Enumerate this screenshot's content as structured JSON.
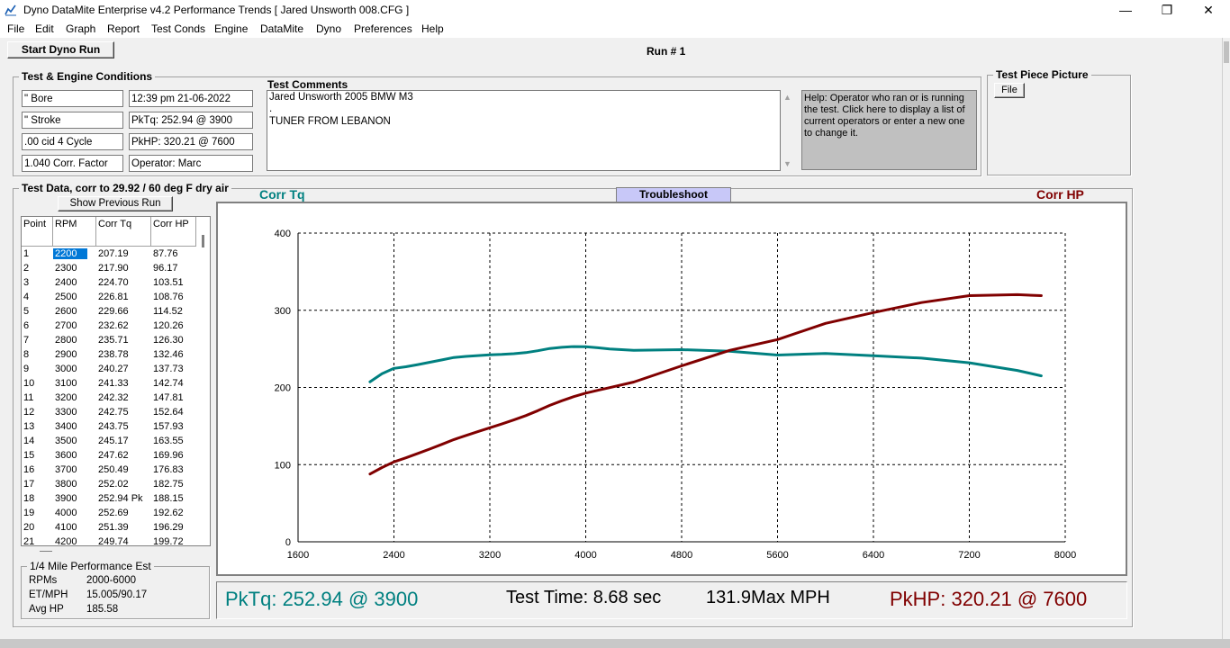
{
  "window": {
    "title": "Dyno DataMite Enterprise v4.2   Performance Trends   [ Jared Unsworth  008.CFG ]",
    "minimize": "—",
    "maximize": "❐",
    "close": "✕"
  },
  "menu": [
    "File",
    "Edit",
    "Graph",
    "Report",
    "Test Conds",
    "Engine",
    "DataMite",
    "Dyno",
    "Preferences",
    "Help"
  ],
  "toolbar": {
    "start_label": "Start Dyno Run",
    "run_label": "Run # 1"
  },
  "conditions": {
    "legend": "Test & Engine Conditions",
    "left": [
      "\" Bore",
      "\" Stroke",
      ".00 cid  4 Cycle",
      "1.040 Corr. Factor"
    ],
    "right": [
      "12:39 pm  21-06-2022",
      "PkTq: 252.94 @  3900",
      "PkHP: 320.21 @  7600",
      "Operator: Marc"
    ]
  },
  "comments": {
    "label": "Test Comments",
    "lines": [
      "Jared Unsworth  2005 BMW M3",
      ".",
      " TUNER FROM LEBANON"
    ]
  },
  "help_text": "Help:  Operator who ran or is running the test.  Click here to display a list of current operators or enter a new one to change it.",
  "picture": {
    "legend": "Test Piece Picture",
    "file_button": "File"
  },
  "data": {
    "legend": "Test Data, corr to 29.92 / 60 deg F dry air",
    "show_prev": "Show Previous Run",
    "headers": [
      "Point",
      "RPM",
      "Corr Tq",
      "Corr HP"
    ],
    "rows": [
      [
        "1",
        "2200",
        "207.19",
        "87.76"
      ],
      [
        "2",
        "2300",
        "217.90",
        "96.17"
      ],
      [
        "3",
        "2400",
        "224.70",
        "103.51"
      ],
      [
        "4",
        "2500",
        "226.81",
        "108.76"
      ],
      [
        "5",
        "2600",
        "229.66",
        "114.52"
      ],
      [
        "6",
        "2700",
        "232.62",
        "120.26"
      ],
      [
        "7",
        "2800",
        "235.71",
        "126.30"
      ],
      [
        "8",
        "2900",
        "238.78",
        "132.46"
      ],
      [
        "9",
        "3000",
        "240.27",
        "137.73"
      ],
      [
        "10",
        "3100",
        "241.33",
        "142.74"
      ],
      [
        "11",
        "3200",
        "242.32",
        "147.81"
      ],
      [
        "12",
        "3300",
        "242.75",
        "152.64"
      ],
      [
        "13",
        "3400",
        "243.75",
        "157.93"
      ],
      [
        "14",
        "3500",
        "245.17",
        "163.55"
      ],
      [
        "15",
        "3600",
        "247.62",
        "169.96"
      ],
      [
        "16",
        "3700",
        "250.49",
        "176.83"
      ],
      [
        "17",
        "3800",
        "252.02",
        "182.75"
      ],
      [
        "18",
        "3900",
        "252.94 Pk",
        "188.15"
      ],
      [
        "19",
        "4000",
        "252.69",
        "192.62"
      ],
      [
        "20",
        "4100",
        "251.39",
        "196.29"
      ],
      [
        "21",
        "4200",
        "249.74",
        "199.72"
      ]
    ]
  },
  "quarter_mile": {
    "legend": "1/4 Mile Performance Est",
    "rows": [
      [
        "RPMs",
        "2000-6000"
      ],
      [
        "ET/MPH",
        "15.005/90.17"
      ],
      [
        "Avg HP",
        "185.58"
      ]
    ]
  },
  "graph": {
    "corr_tq_label": "Corr Tq",
    "corr_hp_label": "Corr HP",
    "troubleshoot": "Troubleshoot"
  },
  "status": {
    "pktq": "PkTq: 252.94 @  3900",
    "test_time": "Test Time: 8.68 sec",
    "max_mph": "131.9Max MPH",
    "pkhp": "PkHP: 320.21 @  7600"
  },
  "colors": {
    "tq": "#008080",
    "hp": "#800000",
    "grid": "#000000",
    "troubleshoot_bg": "#c8c8f8"
  },
  "chart_data": {
    "type": "line",
    "x_ticks": [
      1600,
      2400,
      3200,
      4000,
      4800,
      5600,
      6400,
      7200,
      8000
    ],
    "y_ticks": [
      0,
      100,
      200,
      300,
      400
    ],
    "xlim": [
      1600,
      8000
    ],
    "ylim": [
      0,
      400
    ],
    "grid": true,
    "series": [
      {
        "name": "Corr Tq",
        "color": "#008080",
        "x": [
          2200,
          2300,
          2400,
          2500,
          2600,
          2700,
          2800,
          2900,
          3000,
          3100,
          3200,
          3300,
          3400,
          3500,
          3600,
          3700,
          3800,
          3900,
          4000,
          4100,
          4200,
          4400,
          4800,
          5200,
          5600,
          6000,
          6400,
          6800,
          7200,
          7600,
          7800
        ],
        "y": [
          207.19,
          217.9,
          224.7,
          226.81,
          229.66,
          232.62,
          235.71,
          238.78,
          240.27,
          241.33,
          242.32,
          242.75,
          243.75,
          245.17,
          247.62,
          250.49,
          252.02,
          252.94,
          252.69,
          251.39,
          249.74,
          248,
          249,
          247,
          242,
          244,
          241,
          238,
          232,
          222,
          215
        ]
      },
      {
        "name": "Corr HP",
        "color": "#800000",
        "x": [
          2200,
          2300,
          2400,
          2500,
          2600,
          2700,
          2800,
          2900,
          3000,
          3100,
          3200,
          3300,
          3400,
          3500,
          3600,
          3700,
          3800,
          3900,
          4000,
          4100,
          4200,
          4400,
          4800,
          5200,
          5600,
          6000,
          6400,
          6800,
          7200,
          7600,
          7800
        ],
        "y": [
          87.76,
          96.17,
          103.51,
          108.76,
          114.52,
          120.26,
          126.3,
          132.46,
          137.73,
          142.74,
          147.81,
          152.64,
          157.93,
          163.55,
          169.96,
          176.83,
          182.75,
          188.15,
          192.62,
          196.29,
          199.72,
          207,
          228,
          248,
          262,
          283,
          297,
          310,
          319,
          320.21,
          319
        ]
      }
    ]
  }
}
